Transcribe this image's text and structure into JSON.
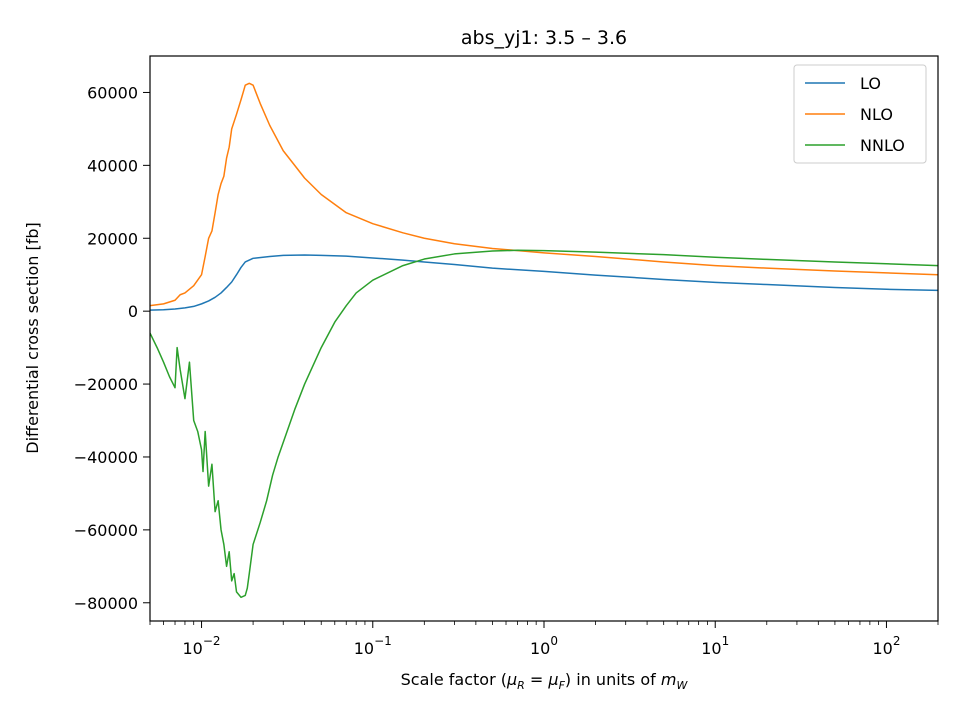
{
  "chart_data": {
    "type": "line",
    "title": "abs_yj1: 3.5 – 3.6",
    "xlabel": {
      "prefix": "Scale factor (",
      "mu": "μ",
      "r_sub": "R",
      "eq": " = ",
      "f_sub": "F",
      "mid": ") in units of ",
      "m": "m",
      "w_sub": "W"
    },
    "ylabel": "Differential cross section [fb]",
    "xscale": "log",
    "xlim": [
      0.005,
      200
    ],
    "ylim": [
      -85000,
      70000
    ],
    "grid": false,
    "legend_position": "top-right",
    "x_ticks": [
      {
        "value": 0.01,
        "base": "10",
        "exp": "−2"
      },
      {
        "value": 0.1,
        "base": "10",
        "exp": "−1"
      },
      {
        "value": 1,
        "base": "10",
        "exp": "0"
      },
      {
        "value": 10,
        "base": "10",
        "exp": "1"
      },
      {
        "value": 100,
        "base": "10",
        "exp": "2"
      }
    ],
    "y_ticks": [
      {
        "value": 60000,
        "label": "60000"
      },
      {
        "value": 40000,
        "label": "40000"
      },
      {
        "value": 20000,
        "label": "20000"
      },
      {
        "value": 0,
        "label": "0"
      },
      {
        "value": -20000,
        "label": "−20000"
      },
      {
        "value": -40000,
        "label": "−40000"
      },
      {
        "value": -60000,
        "label": "−60000"
      },
      {
        "value": -80000,
        "label": "−80000"
      }
    ],
    "series": [
      {
        "name": "LO",
        "color": "#1f77b4",
        "points": [
          [
            0.005,
            300
          ],
          [
            0.006,
            400
          ],
          [
            0.007,
            600
          ],
          [
            0.008,
            900
          ],
          [
            0.009,
            1300
          ],
          [
            0.01,
            2000
          ],
          [
            0.011,
            2800
          ],
          [
            0.012,
            3800
          ],
          [
            0.013,
            5000
          ],
          [
            0.014,
            6500
          ],
          [
            0.015,
            8000
          ],
          [
            0.016,
            10000
          ],
          [
            0.017,
            12000
          ],
          [
            0.018,
            13500
          ],
          [
            0.02,
            14500
          ],
          [
            0.025,
            15000
          ],
          [
            0.03,
            15300
          ],
          [
            0.04,
            15400
          ],
          [
            0.05,
            15300
          ],
          [
            0.07,
            15100
          ],
          [
            0.1,
            14600
          ],
          [
            0.15,
            14000
          ],
          [
            0.2,
            13500
          ],
          [
            0.3,
            12800
          ],
          [
            0.5,
            11800
          ],
          [
            1,
            10900
          ],
          [
            2,
            9900
          ],
          [
            5,
            8700
          ],
          [
            10,
            7900
          ],
          [
            20,
            7300
          ],
          [
            50,
            6500
          ],
          [
            100,
            6000
          ],
          [
            200,
            5700
          ]
        ]
      },
      {
        "name": "NLO",
        "color": "#ff7f0e",
        "points": [
          [
            0.005,
            1500
          ],
          [
            0.006,
            2000
          ],
          [
            0.007,
            3000
          ],
          [
            0.0075,
            4500
          ],
          [
            0.008,
            5000
          ],
          [
            0.009,
            7000
          ],
          [
            0.01,
            10000
          ],
          [
            0.0105,
            15000
          ],
          [
            0.011,
            20000
          ],
          [
            0.0115,
            22000
          ],
          [
            0.012,
            27000
          ],
          [
            0.0125,
            32000
          ],
          [
            0.013,
            35000
          ],
          [
            0.0135,
            37000
          ],
          [
            0.014,
            42000
          ],
          [
            0.0145,
            45000
          ],
          [
            0.015,
            50000
          ],
          [
            0.016,
            54000
          ],
          [
            0.017,
            58000
          ],
          [
            0.0175,
            60000
          ],
          [
            0.018,
            62000
          ],
          [
            0.019,
            62500
          ],
          [
            0.02,
            62000
          ],
          [
            0.022,
            57000
          ],
          [
            0.025,
            51000
          ],
          [
            0.03,
            44000
          ],
          [
            0.035,
            40000
          ],
          [
            0.04,
            36500
          ],
          [
            0.05,
            32000
          ],
          [
            0.07,
            27000
          ],
          [
            0.1,
            24000
          ],
          [
            0.15,
            21500
          ],
          [
            0.2,
            20000
          ],
          [
            0.3,
            18500
          ],
          [
            0.5,
            17200
          ],
          [
            1,
            16000
          ],
          [
            2,
            15000
          ],
          [
            5,
            13500
          ],
          [
            10,
            12500
          ],
          [
            20,
            11800
          ],
          [
            50,
            11000
          ],
          [
            100,
            10500
          ],
          [
            200,
            10000
          ]
        ]
      },
      {
        "name": "NNLO",
        "color": "#2ca02c",
        "points": [
          [
            0.005,
            -6000
          ],
          [
            0.0055,
            -10000
          ],
          [
            0.006,
            -14000
          ],
          [
            0.0065,
            -18000
          ],
          [
            0.007,
            -21000
          ],
          [
            0.0072,
            -10000
          ],
          [
            0.0075,
            -16000
          ],
          [
            0.008,
            -24000
          ],
          [
            0.0085,
            -14000
          ],
          [
            0.009,
            -30000
          ],
          [
            0.0095,
            -33000
          ],
          [
            0.01,
            -38000
          ],
          [
            0.0102,
            -44000
          ],
          [
            0.0105,
            -33000
          ],
          [
            0.011,
            -48000
          ],
          [
            0.0115,
            -42000
          ],
          [
            0.012,
            -55000
          ],
          [
            0.0125,
            -52000
          ],
          [
            0.013,
            -60000
          ],
          [
            0.0135,
            -64000
          ],
          [
            0.014,
            -70000
          ],
          [
            0.0145,
            -66000
          ],
          [
            0.015,
            -74000
          ],
          [
            0.0155,
            -72000
          ],
          [
            0.016,
            -77000
          ],
          [
            0.017,
            -78500
          ],
          [
            0.018,
            -78000
          ],
          [
            0.0185,
            -76000
          ],
          [
            0.019,
            -72000
          ],
          [
            0.02,
            -64000
          ],
          [
            0.022,
            -58000
          ],
          [
            0.024,
            -52000
          ],
          [
            0.026,
            -45000
          ],
          [
            0.028,
            -40000
          ],
          [
            0.03,
            -36000
          ],
          [
            0.035,
            -27000
          ],
          [
            0.04,
            -20000
          ],
          [
            0.05,
            -10000
          ],
          [
            0.06,
            -3000
          ],
          [
            0.07,
            1500
          ],
          [
            0.08,
            5000
          ],
          [
            0.1,
            8500
          ],
          [
            0.15,
            12500
          ],
          [
            0.2,
            14300
          ],
          [
            0.3,
            15700
          ],
          [
            0.5,
            16500
          ],
          [
            0.7,
            16700
          ],
          [
            1,
            16600
          ],
          [
            2,
            16200
          ],
          [
            5,
            15500
          ],
          [
            10,
            14800
          ],
          [
            20,
            14200
          ],
          [
            50,
            13500
          ],
          [
            100,
            13000
          ],
          [
            200,
            12500
          ]
        ]
      }
    ]
  }
}
